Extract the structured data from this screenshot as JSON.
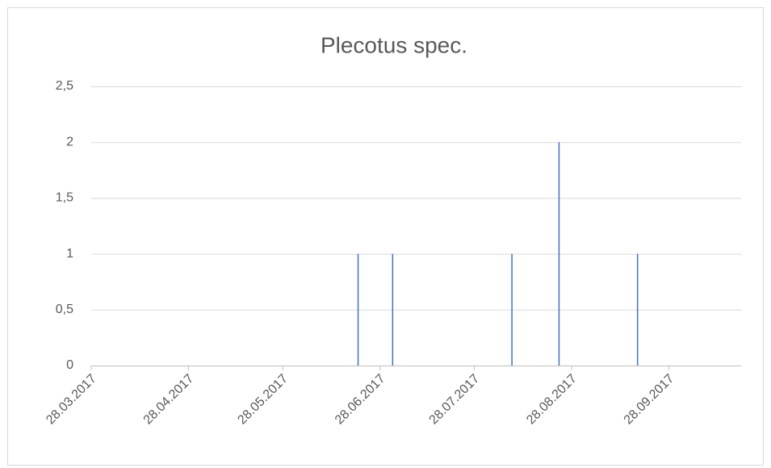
{
  "chart_data": {
    "type": "bar",
    "title": "Plecotus spec.",
    "x": [
      "21.06.2017",
      "02.07.2017",
      "09.08.2017",
      "24.08.2017",
      "18.09.2017"
    ],
    "values": [
      1,
      1,
      1,
      2,
      1
    ],
    "color": "#4472c4",
    "xlim": [
      "28.03.2017",
      "21.10.2017"
    ],
    "xticks": [
      "28.03.2017",
      "28.04.2017",
      "28.05.2017",
      "28.06.2017",
      "28.07.2017",
      "28.08.2017",
      "28.09.2017"
    ],
    "ylim": [
      0,
      2.5
    ],
    "yticks": [
      0,
      {
        "value": 0.5,
        "label": "0,5"
      },
      1,
      {
        "value": 1.5,
        "label": "1,5"
      },
      2,
      {
        "value": 2.5,
        "label": "2,5"
      }
    ],
    "grid": true
  }
}
